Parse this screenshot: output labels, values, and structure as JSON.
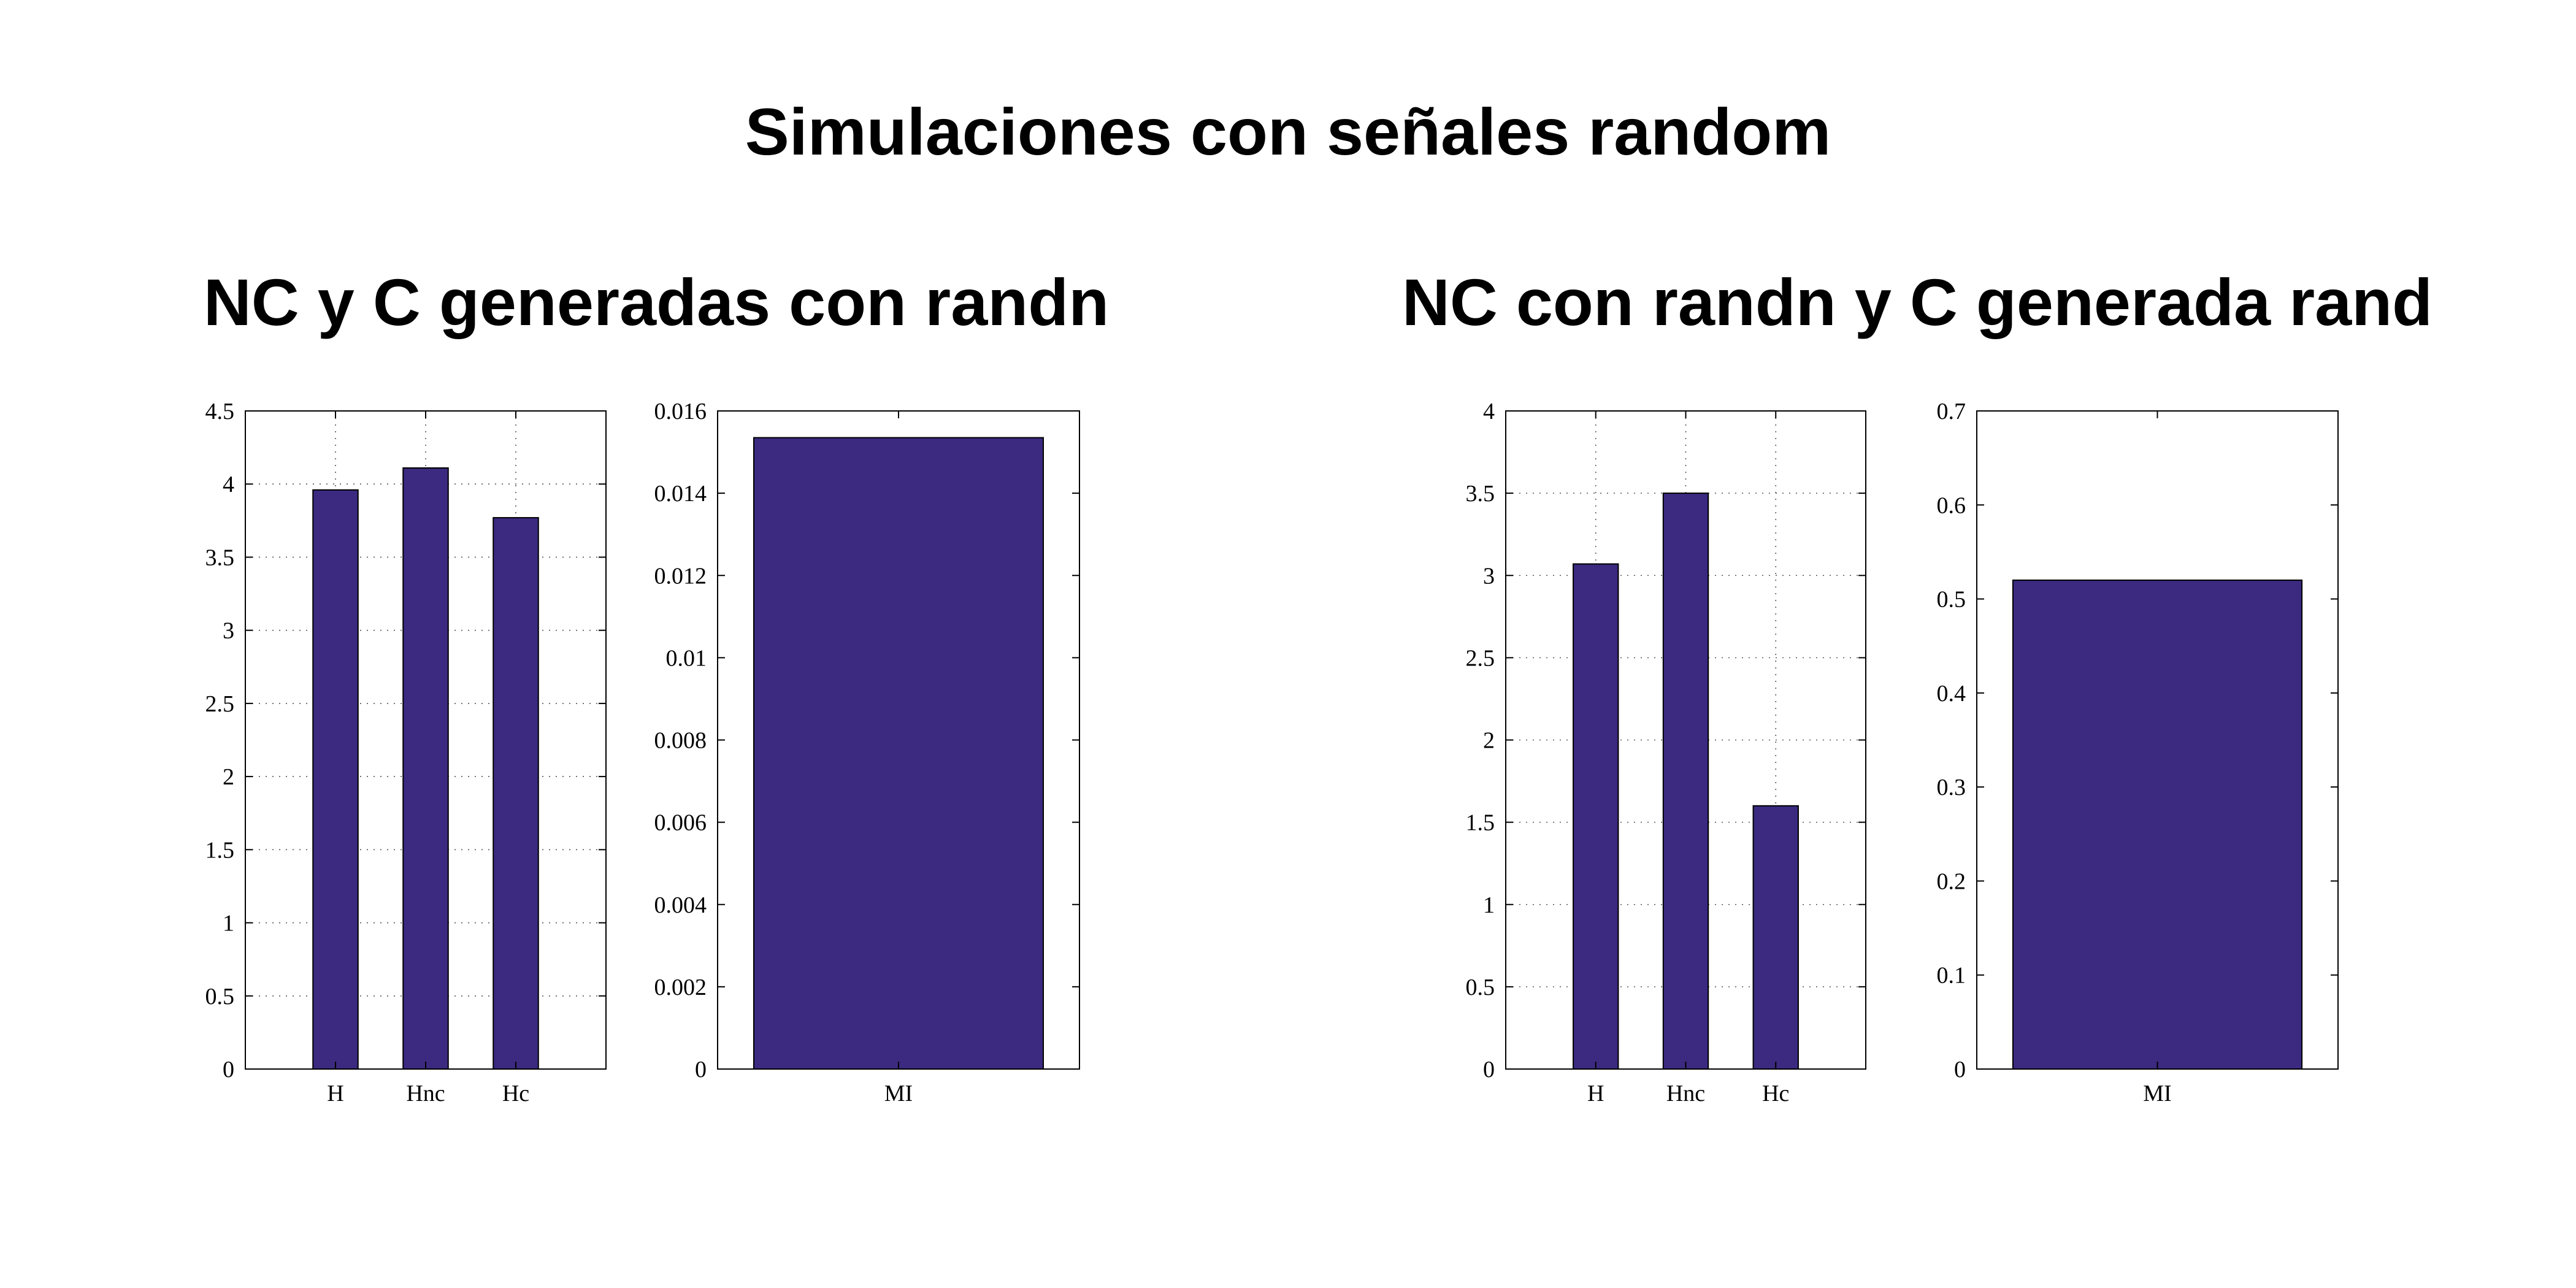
{
  "title": "Simulaciones con señales random",
  "colors": {
    "bar_fill": "#3b2a7f",
    "background": "#ffffff"
  },
  "groups": [
    {
      "title": "NC y C generadas con randn"
    },
    {
      "title": "NC con randn y C generada rand"
    }
  ],
  "chart_data": [
    {
      "type": "bar",
      "group": 0,
      "categories": [
        "H",
        "Hnc",
        "Hc"
      ],
      "values": [
        3.96,
        4.11,
        3.77
      ],
      "ylim": [
        0,
        4.5
      ],
      "yticks": [
        0,
        0.5,
        1,
        1.5,
        2,
        2.5,
        3,
        3.5,
        4,
        4.5
      ],
      "ytick_labels": [
        "0",
        "0.5",
        "1",
        "1.5",
        "2",
        "2.5",
        "3",
        "3.5",
        "4",
        "4.5"
      ],
      "grid": true
    },
    {
      "type": "bar",
      "group": 0,
      "categories": [
        "MI"
      ],
      "values": [
        0.01535
      ],
      "ylim": [
        0,
        0.016
      ],
      "yticks": [
        0,
        0.002,
        0.004,
        0.006,
        0.008,
        0.01,
        0.012,
        0.014,
        0.016
      ],
      "ytick_labels": [
        "0",
        "0.002",
        "0.004",
        "0.006",
        "0.008",
        "0.01",
        "0.012",
        "0.014",
        "0.016"
      ],
      "grid": false
    },
    {
      "type": "bar",
      "group": 1,
      "categories": [
        "H",
        "Hnc",
        "Hc"
      ],
      "values": [
        3.07,
        3.5,
        1.6
      ],
      "ylim": [
        0,
        4
      ],
      "yticks": [
        0,
        0.5,
        1,
        1.5,
        2,
        2.5,
        3,
        3.5,
        4
      ],
      "ytick_labels": [
        "0",
        "0.5",
        "1",
        "1.5",
        "2",
        "2.5",
        "3",
        "3.5",
        "4"
      ],
      "grid": true
    },
    {
      "type": "bar",
      "group": 1,
      "categories": [
        "MI"
      ],
      "values": [
        0.52
      ],
      "ylim": [
        0,
        0.7
      ],
      "yticks": [
        0,
        0.1,
        0.2,
        0.3,
        0.4,
        0.5,
        0.6,
        0.7
      ],
      "ytick_labels": [
        "0",
        "0.1",
        "0.2",
        "0.3",
        "0.4",
        "0.5",
        "0.6",
        "0.7"
      ],
      "grid": false
    }
  ]
}
